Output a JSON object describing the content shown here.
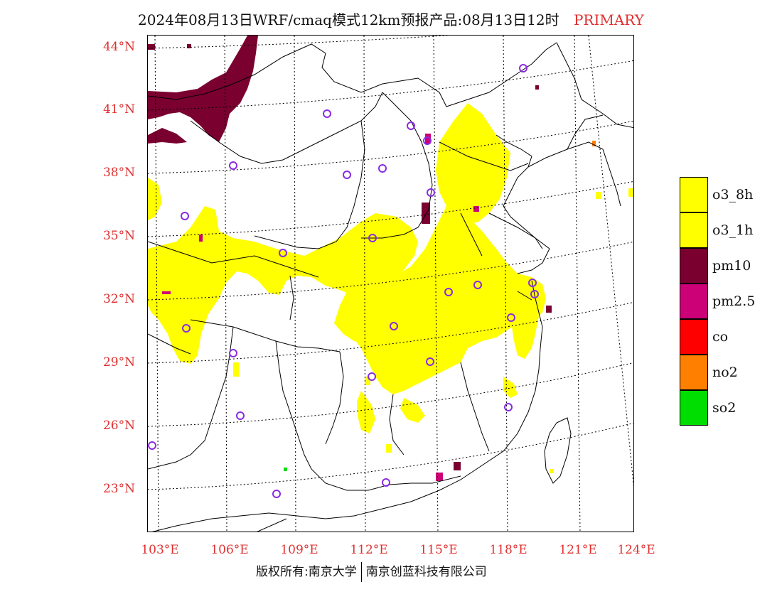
{
  "title": {
    "main": "2024年08月13日WRF/cmaq模式12km预报产品:08月13日12时",
    "tag": "PRIMARY"
  },
  "lat_labels": [
    "44°N",
    "41°N",
    "38°N",
    "35°N",
    "32°N",
    "29°N",
    "26°N",
    "23°N"
  ],
  "lon_labels": [
    "103°E",
    "106°E",
    "109°E",
    "112°E",
    "115°E",
    "118°E",
    "121°E",
    "124°E"
  ],
  "legend": [
    {
      "label": "o3_8h",
      "color": "#ffff00"
    },
    {
      "label": "o3_1h",
      "color": "#ffff00"
    },
    {
      "label": "pm10",
      "color": "#7a0030"
    },
    {
      "label": "pm2.5",
      "color": "#cc0077"
    },
    {
      "label": "co",
      "color": "#ff0000"
    },
    {
      "label": "no2",
      "color": "#ff7f00"
    },
    {
      "label": "so2",
      "color": "#00dd00"
    }
  ],
  "footer": {
    "left": "版权所有:南京大学",
    "right": "南京创蓝科技有限公司"
  },
  "colors": {
    "label_red": "#e03030",
    "station_circle": "#8a2be2"
  }
}
